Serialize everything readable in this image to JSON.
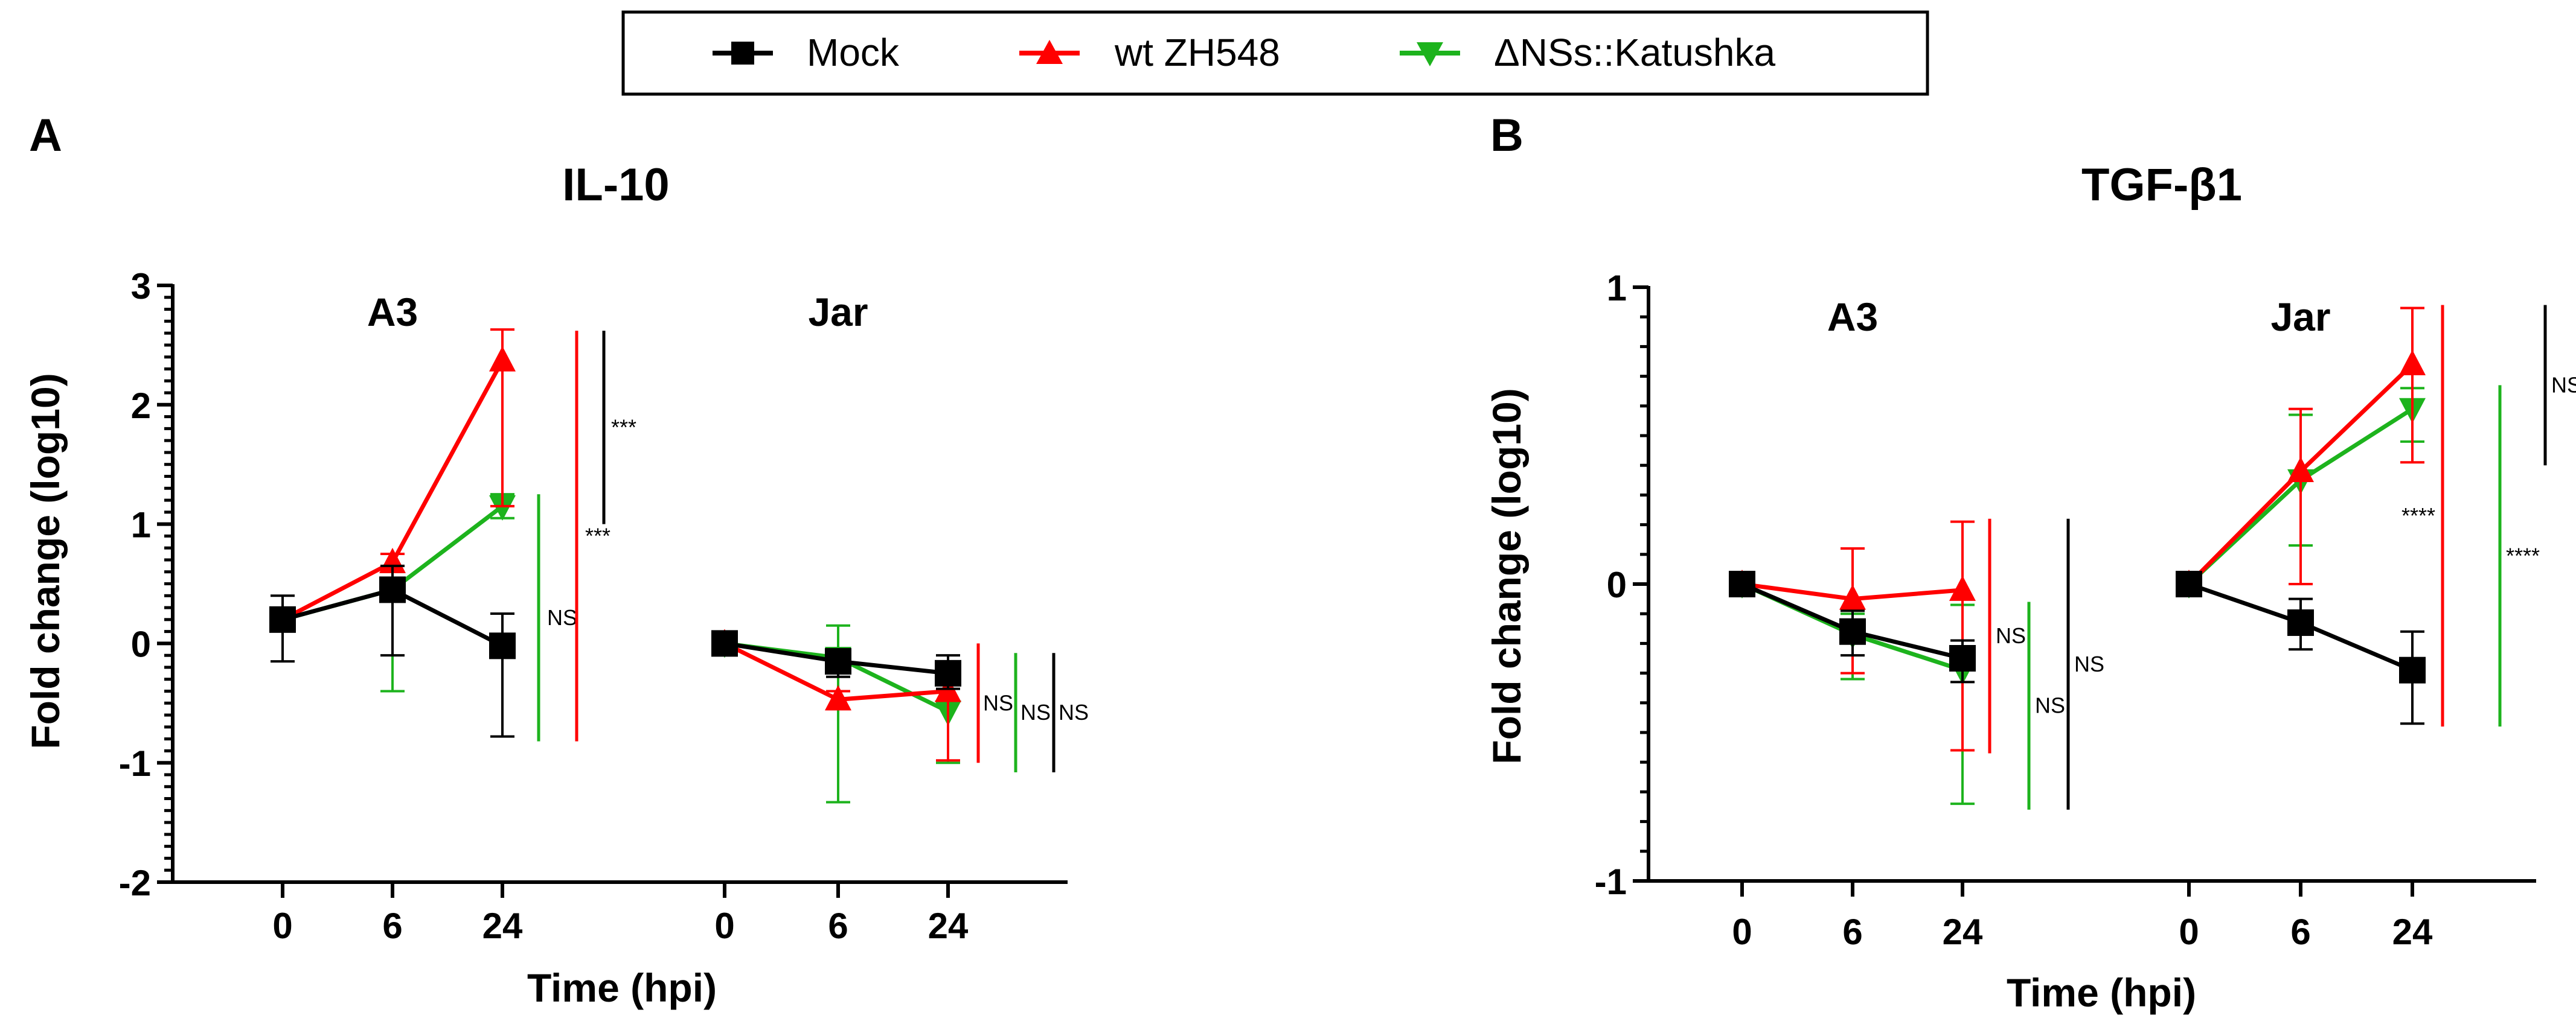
{
  "figure": {
    "legend": [
      {
        "label": "Mock",
        "color": "#000000",
        "marker": "square"
      },
      {
        "label": "wt ZH548",
        "color": "#ff0000",
        "marker": "triangle-up"
      },
      {
        "label": "ΔNSs::Katushka",
        "color": "#1db31d",
        "marker": "triangle-down"
      }
    ]
  },
  "chart_data": [
    {
      "type": "line",
      "panel_letter": "A",
      "title": "IL-10",
      "xlabel": "Time (hpi)",
      "ylabel": "Fold change (log10)",
      "ylim": [
        -2,
        3
      ],
      "yticks": [
        "3",
        "2",
        "1",
        "0",
        "-1",
        "-2"
      ],
      "ytick_values": [
        3,
        2,
        1,
        0,
        -1,
        -2
      ],
      "grid": false,
      "legend_position": "top-center",
      "groups": [
        {
          "label": "A3",
          "x": [
            "0",
            "6",
            "24"
          ],
          "series": [
            {
              "name": "Mock",
              "color": "#000000",
              "marker": "square",
              "values": [
                0.2,
                0.45,
                -0.02
              ],
              "err_low": [
                -0.15,
                -0.1,
                -0.78
              ],
              "err_high": [
                0.4,
                0.65,
                0.25
              ]
            },
            {
              "name": "wt ZH548",
              "color": "#ff0000",
              "marker": "triangle-up",
              "values": [
                0.2,
                0.68,
                2.37
              ],
              "err_low": [
                0.2,
                0.6,
                1.15
              ],
              "err_high": [
                0.2,
                0.75,
                2.63
              ]
            },
            {
              "name": "ΔNSs::Katushka",
              "color": "#1db31d",
              "marker": "triangle-down",
              "values": [
                0.2,
                0.45,
                1.15
              ],
              "err_low": [
                0.2,
                -0.4,
                1.05
              ],
              "err_high": [
                0.2,
                0.6,
                1.25
              ]
            }
          ],
          "significance": [
            {
              "label": "***",
              "color": "#000000",
              "y_from": 1.0,
              "y_to": 2.62
            },
            {
              "label": "NS",
              "color": "#1db31d",
              "y_from": -0.82,
              "y_to": 1.25
            },
            {
              "label": "***",
              "color": "#ff0000",
              "y_from": -0.82,
              "y_to": 2.62
            }
          ]
        },
        {
          "label": "Jar",
          "x": [
            "0",
            "6",
            "24"
          ],
          "series": [
            {
              "name": "Mock",
              "color": "#000000",
              "marker": "square",
              "values": [
                0.0,
                -0.15,
                -0.25
              ],
              "err_low": [
                0.0,
                -0.28,
                -0.38
              ],
              "err_high": [
                0.0,
                -0.05,
                -0.1
              ]
            },
            {
              "name": "wt ZH548",
              "color": "#ff0000",
              "marker": "triangle-up",
              "values": [
                0.0,
                -0.47,
                -0.4
              ],
              "err_low": [
                0.0,
                -0.55,
                -0.98
              ],
              "err_high": [
                0.0,
                -0.4,
                -0.2
              ]
            },
            {
              "name": "ΔNSs::Katushka",
              "color": "#1db31d",
              "marker": "triangle-down",
              "values": [
                0.0,
                -0.12,
                -0.57
              ],
              "err_low": [
                0.0,
                -1.33,
                -1.0
              ],
              "err_high": [
                0.0,
                0.15,
                -0.2
              ]
            }
          ],
          "significance": [
            {
              "label": "NS",
              "color": "#ff0000",
              "y_from": -1.0,
              "y_to": 0.0
            },
            {
              "label": "NS",
              "color": "#1db31d",
              "y_from": -1.08,
              "y_to": -0.08
            },
            {
              "label": "NS",
              "color": "#000000",
              "y_from": -1.08,
              "y_to": -0.08
            }
          ]
        }
      ]
    },
    {
      "type": "line",
      "panel_letter": "B",
      "title": "TGF-β1",
      "xlabel": "Time (hpi)",
      "ylabel": "Fold change (log10)",
      "ylim": [
        -1,
        1
      ],
      "yticks": [
        "1",
        "0",
        "-1"
      ],
      "ytick_values": [
        1,
        0,
        -1
      ],
      "grid": false,
      "groups": [
        {
          "label": "A3",
          "x": [
            "0",
            "6",
            "24"
          ],
          "series": [
            {
              "name": "Mock",
              "color": "#000000",
              "marker": "square",
              "values": [
                0.0,
                -0.16,
                -0.25
              ],
              "err_low": [
                0.0,
                -0.24,
                -0.33
              ],
              "err_high": [
                0.0,
                -0.09,
                -0.19
              ]
            },
            {
              "name": "wt ZH548",
              "color": "#ff0000",
              "marker": "triangle-up",
              "values": [
                0.0,
                -0.05,
                -0.02
              ],
              "err_low": [
                0.0,
                -0.3,
                -0.56
              ],
              "err_high": [
                0.0,
                0.12,
                0.21
              ]
            },
            {
              "name": "ΔNSs::Katushka",
              "color": "#1db31d",
              "marker": "triangle-down",
              "values": [
                0.0,
                -0.17,
                -0.29
              ],
              "err_low": [
                0.0,
                -0.32,
                -0.74
              ],
              "err_high": [
                0.0,
                -0.1,
                -0.07
              ]
            }
          ],
          "significance": [
            {
              "label": "NS",
              "color": "#ff0000",
              "y_from": -0.57,
              "y_to": 0.22
            },
            {
              "label": "NS",
              "color": "#1db31d",
              "y_from": -0.76,
              "y_to": -0.06
            },
            {
              "label": "NS",
              "color": "#000000",
              "y_from": -0.76,
              "y_to": 0.22
            }
          ]
        },
        {
          "label": "Jar",
          "x": [
            "0",
            "6",
            "24"
          ],
          "series": [
            {
              "name": "Mock",
              "color": "#000000",
              "marker": "square",
              "values": [
                0.0,
                -0.13,
                -0.29
              ],
              "err_low": [
                0.0,
                -0.22,
                -0.47
              ],
              "err_high": [
                0.0,
                -0.05,
                -0.16
              ]
            },
            {
              "name": "wt ZH548",
              "color": "#ff0000",
              "marker": "triangle-up",
              "values": [
                0.0,
                0.38,
                0.74
              ],
              "err_low": [
                0.0,
                0.0,
                0.41
              ],
              "err_high": [
                0.0,
                0.59,
                0.93
              ]
            },
            {
              "name": "ΔNSs::Katushka",
              "color": "#1db31d",
              "marker": "triangle-down",
              "values": [
                0.0,
                0.35,
                0.59
              ],
              "err_low": [
                0.0,
                0.13,
                0.48
              ],
              "err_high": [
                0.0,
                0.57,
                0.66
              ]
            }
          ],
          "significance": [
            {
              "label": "****",
              "color": "#ff0000",
              "y_from": -0.48,
              "y_to": 0.94
            },
            {
              "label": "****",
              "color": "#1db31d",
              "y_from": -0.48,
              "y_to": 0.67
            },
            {
              "label": "NS",
              "color": "#000000",
              "y_from": 0.4,
              "y_to": 0.94
            }
          ]
        }
      ]
    }
  ]
}
